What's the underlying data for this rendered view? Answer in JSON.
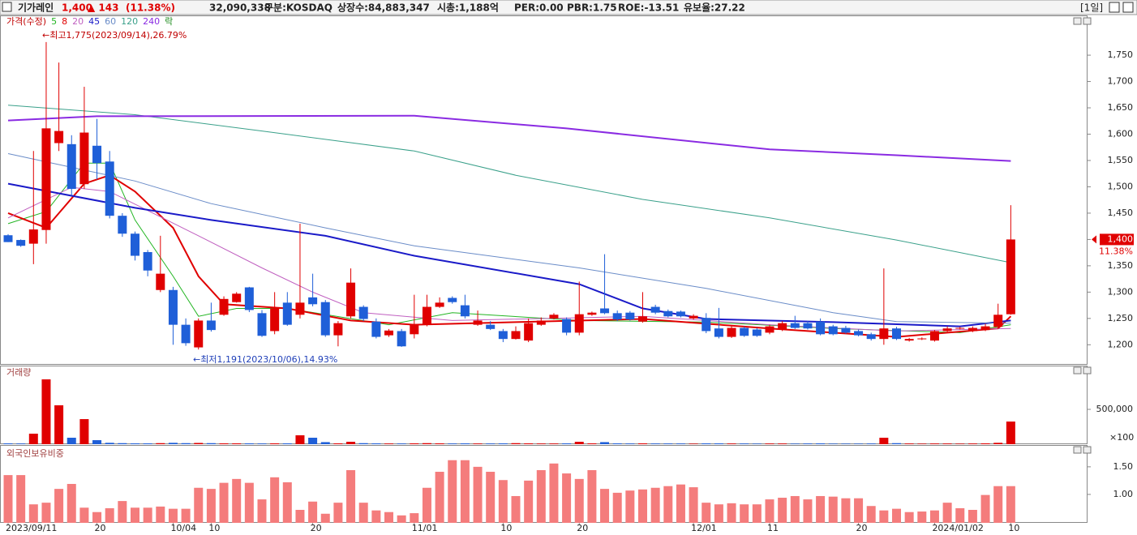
{
  "header": {
    "name": "기가레인",
    "price": "1,400",
    "change": "▲ 143",
    "change_pct": "(11.38%)",
    "volume": "32,090,338",
    "market": "구분:KOSDAQ",
    "shares": "상장수:84,883,347",
    "market_cap": "시총:1,188억",
    "per": "PER:0.00",
    "pbr": "PBR:1.75",
    "roe": "ROE:-13.51",
    "reserve": "유보율:27.22",
    "period": "[1일]"
  },
  "chart_data": [
    {
      "type": "candlestick",
      "price_label": "가격(수정)",
      "lock_label": "락",
      "high_label": "←최고1,775(2023/09/14),26.79%",
      "low_label": "←최저1,191(2023/10/06),14.93%",
      "last_price_label": "1,400",
      "last_change_label": "11.38%",
      "up_color": "#e00000",
      "down_color": "#1f5fd8",
      "categories": [
        "2023/09/11",
        null,
        null,
        null,
        null,
        null,
        null,
        "20",
        null,
        null,
        null,
        null,
        null,
        "10/04",
        null,
        null,
        "10",
        null,
        null,
        null,
        null,
        null,
        null,
        null,
        "20",
        null,
        null,
        null,
        null,
        null,
        null,
        null,
        "11/01",
        null,
        null,
        null,
        null,
        null,
        null,
        "10",
        null,
        null,
        null,
        null,
        null,
        "20",
        null,
        null,
        null,
        null,
        null,
        null,
        null,
        null,
        "12/01",
        null,
        null,
        null,
        null,
        null,
        "11",
        null,
        null,
        null,
        null,
        null,
        null,
        "20",
        null,
        null,
        null,
        null,
        null,
        "2024/01/02",
        null,
        null,
        null,
        null,
        null,
        "10"
      ],
      "ohlc": [
        [
          1408,
          1410,
          1395,
          1395
        ],
        [
          1399,
          1400,
          1386,
          1388
        ],
        [
          1392,
          1568,
          1353,
          1419
        ],
        [
          1418,
          1775,
          1392,
          1611
        ],
        [
          1583,
          1736,
          1568,
          1606
        ],
        [
          1581,
          1598,
          1483,
          1496
        ],
        [
          1505,
          1690,
          1496,
          1603
        ],
        [
          1578,
          1629,
          1514,
          1545
        ],
        [
          1548,
          1568,
          1440,
          1445
        ],
        [
          1445,
          1450,
          1405,
          1411
        ],
        [
          1411,
          1415,
          1360,
          1369
        ],
        [
          1376,
          1380,
          1330,
          1341
        ],
        [
          1304,
          1407,
          1300,
          1335
        ],
        [
          1304,
          1310,
          1200,
          1238
        ],
        [
          1238,
          1250,
          1198,
          1203
        ],
        [
          1195,
          1250,
          1191,
          1246
        ],
        [
          1246,
          1280,
          1225,
          1228
        ],
        [
          1257,
          1292,
          1255,
          1287
        ],
        [
          1281,
          1300,
          1280,
          1297
        ],
        [
          1309,
          1310,
          1262,
          1266
        ],
        [
          1260,
          1266,
          1215,
          1217
        ],
        [
          1226,
          1300,
          1220,
          1269
        ],
        [
          1280,
          1300,
          1236,
          1238
        ],
        [
          1257,
          1430,
          1250,
          1280
        ],
        [
          1290,
          1335,
          1273,
          1277
        ],
        [
          1281,
          1285,
          1215,
          1218
        ],
        [
          1218,
          1245,
          1197,
          1241
        ],
        [
          1254,
          1345,
          1250,
          1318
        ],
        [
          1272,
          1275,
          1245,
          1249
        ],
        [
          1244,
          1250,
          1212,
          1215
        ],
        [
          1218,
          1230,
          1215,
          1227
        ],
        [
          1226,
          1230,
          1196,
          1197
        ],
        [
          1220,
          1295,
          1212,
          1238
        ],
        [
          1238,
          1295,
          1235,
          1272
        ],
        [
          1272,
          1290,
          1270,
          1280
        ],
        [
          1289,
          1292,
          1278,
          1281
        ],
        [
          1275,
          1295,
          1250,
          1254
        ],
        [
          1238,
          1265,
          1236,
          1246
        ],
        [
          1238,
          1245,
          1228,
          1230
        ],
        [
          1226,
          1230,
          1205,
          1211
        ],
        [
          1211,
          1235,
          1210,
          1226
        ],
        [
          1208,
          1250,
          1205,
          1241
        ],
        [
          1238,
          1252,
          1236,
          1246
        ],
        [
          1250,
          1260,
          1248,
          1257
        ],
        [
          1249,
          1252,
          1218,
          1223
        ],
        [
          1223,
          1320,
          1218,
          1258
        ],
        [
          1257,
          1263,
          1255,
          1261
        ],
        [
          1269,
          1372,
          1258,
          1260
        ],
        [
          1260,
          1265,
          1245,
          1248
        ],
        [
          1261,
          1264,
          1246,
          1248
        ],
        [
          1244,
          1300,
          1242,
          1254
        ],
        [
          1272,
          1276,
          1258,
          1261
        ],
        [
          1264,
          1267,
          1252,
          1254
        ],
        [
          1263,
          1265,
          1252,
          1254
        ],
        [
          1250,
          1258,
          1248,
          1255
        ],
        [
          1251,
          1260,
          1222,
          1226
        ],
        [
          1231,
          1270,
          1212,
          1215
        ],
        [
          1215,
          1236,
          1213,
          1232
        ],
        [
          1232,
          1235,
          1215,
          1217
        ],
        [
          1229,
          1232,
          1215,
          1217
        ],
        [
          1223,
          1238,
          1220,
          1235
        ],
        [
          1229,
          1245,
          1226,
          1241
        ],
        [
          1241,
          1255,
          1230,
          1232
        ],
        [
          1241,
          1245,
          1229,
          1231
        ],
        [
          1244,
          1250,
          1218,
          1220
        ],
        [
          1235,
          1238,
          1218,
          1220
        ],
        [
          1232,
          1236,
          1221,
          1223
        ],
        [
          1226,
          1229,
          1216,
          1218
        ],
        [
          1220,
          1223,
          1208,
          1211
        ],
        [
          1211,
          1345,
          1200,
          1231
        ],
        [
          1231,
          1234,
          1209,
          1211
        ],
        [
          1208,
          1213,
          1206,
          1211
        ],
        [
          1211,
          1214,
          1209,
          1212
        ],
        [
          1208,
          1228,
          1206,
          1226
        ],
        [
          1226,
          1235,
          1224,
          1231
        ],
        [
          1231,
          1234,
          1229,
          1232
        ],
        [
          1226,
          1235,
          1224,
          1232
        ],
        [
          1228,
          1240,
          1226,
          1235
        ],
        [
          1234,
          1278,
          1230,
          1257
        ],
        [
          1258,
          1465,
          1257,
          1400
        ]
      ],
      "moving_averages": [
        {
          "name": "5",
          "color": "#22b522",
          "width": 1,
          "x": [
            0,
            3,
            6,
            8,
            10,
            13,
            15,
            18,
            22,
            30,
            35,
            45,
            55,
            65,
            75,
            79
          ],
          "values": [
            1430,
            1453,
            1545,
            1545,
            1437,
            1330,
            1254,
            1269,
            1269,
            1238,
            1261,
            1246,
            1243,
            1231,
            1223,
            1238
          ]
        },
        {
          "name": "8",
          "color": "#e00000",
          "width": 2,
          "x": [
            0,
            3,
            6,
            8,
            10,
            13,
            15,
            17,
            22,
            27,
            32,
            40,
            50,
            60,
            70,
            78,
            79
          ],
          "values": [
            1450,
            1422,
            1506,
            1522,
            1491,
            1422,
            1330,
            1277,
            1269,
            1246,
            1238,
            1243,
            1249,
            1231,
            1215,
            1231,
            1254
          ]
        },
        {
          "name": "20",
          "color": "#c060c0",
          "width": 1,
          "x": [
            0,
            5,
            8,
            15,
            20,
            24,
            28,
            35,
            50,
            60,
            70,
            79
          ],
          "values": [
            1441,
            1499,
            1491,
            1407,
            1346,
            1300,
            1261,
            1246,
            1254,
            1238,
            1226,
            1231
          ]
        },
        {
          "name": "45",
          "color": "#1a1ac8",
          "width": 2,
          "x": [
            0,
            10,
            16,
            25,
            32,
            45,
            50,
            55,
            65,
            75,
            79
          ],
          "values": [
            1506,
            1460,
            1437,
            1407,
            1369,
            1315,
            1269,
            1249,
            1243,
            1235,
            1246
          ]
        },
        {
          "name": "60",
          "color": "#6a8cc8",
          "width": 1,
          "x": [
            0,
            10,
            16,
            25,
            32,
            45,
            55,
            65,
            70,
            79
          ],
          "values": [
            1563,
            1511,
            1468,
            1422,
            1388,
            1346,
            1307,
            1261,
            1244,
            1241
          ]
        },
        {
          "name": "120",
          "color": "#3aa08a",
          "width": 1,
          "x": [
            0,
            10,
            20,
            32,
            40,
            50,
            60,
            70,
            79
          ],
          "values": [
            1655,
            1637,
            1606,
            1568,
            1522,
            1476,
            1441,
            1399,
            1356
          ]
        },
        {
          "name": "240",
          "color": "#8a2be2",
          "width": 2,
          "x": [
            0,
            7,
            32,
            44,
            60,
            70,
            79
          ],
          "values": [
            1626,
            1634,
            1635,
            1611,
            1571,
            1560,
            1549
          ]
        }
      ],
      "ylim": [
        1162,
        1824
      ],
      "yticks": [
        {
          "value": 1200,
          "label": "1,200"
        },
        {
          "value": 1250,
          "label": "1,250"
        },
        {
          "value": 1300,
          "label": "1,300"
        },
        {
          "value": 1350,
          "label": "1,350"
        },
        {
          "value": 1400,
          "label": "1,400"
        },
        {
          "value": 1450,
          "label": "1,450"
        },
        {
          "value": 1500,
          "label": "1,500"
        },
        {
          "value": 1550,
          "label": "1,550"
        },
        {
          "value": 1600,
          "label": "1,600"
        },
        {
          "value": 1650,
          "label": "1,650"
        },
        {
          "value": 1700,
          "label": "1,700"
        },
        {
          "value": 1750,
          "label": "1,750"
        }
      ]
    },
    {
      "type": "bar",
      "title": "거래량",
      "unit_label": "×100",
      "values": [
        12000,
        10000,
        151000,
        930000,
        558000,
        93000,
        360000,
        58000,
        20000,
        15000,
        12000,
        12000,
        15000,
        20000,
        15000,
        18000,
        15000,
        12000,
        12000,
        12000,
        10000,
        12000,
        12000,
        128000,
        93000,
        30000,
        12000,
        35000,
        15000,
        12000,
        10000,
        10000,
        12000,
        15000,
        12000,
        10000,
        12000,
        10000,
        10000,
        12000,
        15000,
        12000,
        10000,
        10000,
        12000,
        35000,
        12000,
        30000,
        12000,
        10000,
        12000,
        10000,
        10000,
        10000,
        8000,
        12000,
        12000,
        10000,
        10000,
        8000,
        10000,
        10000,
        8000,
        10000,
        12000,
        8000,
        8000,
        8000,
        10000,
        93000,
        15000,
        10000,
        8000,
        10000,
        10000,
        8000,
        10000,
        12000,
        20000,
        325000
      ],
      "ylim": [
        0,
        1116000
      ],
      "yticks": [
        {
          "value": 500000,
          "label": "500,000"
        }
      ]
    },
    {
      "type": "bar",
      "title": "외국인보유비중",
      "color": "#f47c7c",
      "values": [
        1.35,
        1.35,
        0.82,
        0.85,
        1.1,
        1.19,
        0.76,
        0.68,
        0.75,
        0.88,
        0.76,
        0.76,
        0.78,
        0.74,
        0.74,
        1.12,
        1.1,
        1.21,
        1.28,
        1.21,
        0.91,
        1.31,
        1.22,
        0.72,
        0.87,
        0.65,
        0.85,
        1.44,
        0.85,
        0.71,
        0.68,
        0.62,
        0.66,
        1.12,
        1.41,
        1.62,
        1.62,
        1.5,
        1.41,
        1.26,
        0.97,
        1.25,
        1.44,
        1.56,
        1.38,
        1.28,
        1.44,
        1.1,
        1.03,
        1.07,
        1.09,
        1.12,
        1.15,
        1.18,
        1.13,
        0.85,
        0.82,
        0.84,
        0.82,
        0.82,
        0.91,
        0.94,
        0.97,
        0.91,
        0.97,
        0.96,
        0.93,
        0.93,
        0.79,
        0.71,
        0.74,
        0.68,
        0.69,
        0.71,
        0.85,
        0.75,
        0.72,
        0.99,
        1.15,
        1.15
      ],
      "ylim": [
        0.485,
        1.88
      ],
      "yticks": [
        {
          "value": 1.0,
          "label": "1.00"
        },
        {
          "value": 1.5,
          "label": "1.50"
        }
      ]
    }
  ]
}
